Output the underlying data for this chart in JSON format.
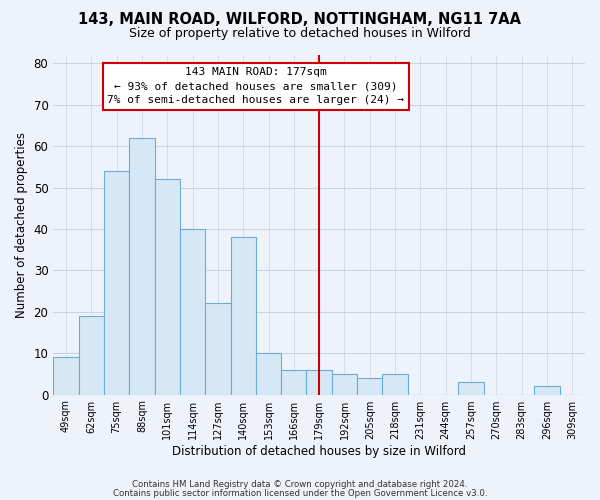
{
  "title1": "143, MAIN ROAD, WILFORD, NOTTINGHAM, NG11 7AA",
  "title2": "Size of property relative to detached houses in Wilford",
  "xlabel": "Distribution of detached houses by size in Wilford",
  "ylabel": "Number of detached properties",
  "bar_labels": [
    "49sqm",
    "62sqm",
    "75sqm",
    "88sqm",
    "101sqm",
    "114sqm",
    "127sqm",
    "140sqm",
    "153sqm",
    "166sqm",
    "179sqm",
    "192sqm",
    "205sqm",
    "218sqm",
    "231sqm",
    "244sqm",
    "257sqm",
    "270sqm",
    "283sqm",
    "296sqm",
    "309sqm"
  ],
  "bar_values": [
    9,
    19,
    54,
    62,
    52,
    40,
    22,
    38,
    10,
    6,
    6,
    5,
    4,
    5,
    0,
    0,
    3,
    0,
    0,
    2,
    0
  ],
  "bar_color": "#d6e8f5",
  "bar_edge_color": "#6aadd5",
  "vline_x": 10,
  "vline_color": "#cc0000",
  "annotation_title": "143 MAIN ROAD: 177sqm",
  "annotation_line1": "← 93% of detached houses are smaller (309)",
  "annotation_line2": "7% of semi-detached houses are larger (24) →",
  "annotation_box_color": "white",
  "annotation_box_edge_color": "#cc0000",
  "ylim": [
    0,
    82
  ],
  "yticks": [
    0,
    10,
    20,
    30,
    40,
    50,
    60,
    70,
    80
  ],
  "footer1": "Contains HM Land Registry data © Crown copyright and database right 2024.",
  "footer2": "Contains public sector information licensed under the Open Government Licence v3.0.",
  "bg_color": "#eef2fa",
  "grid_color": "#c8d4e8"
}
